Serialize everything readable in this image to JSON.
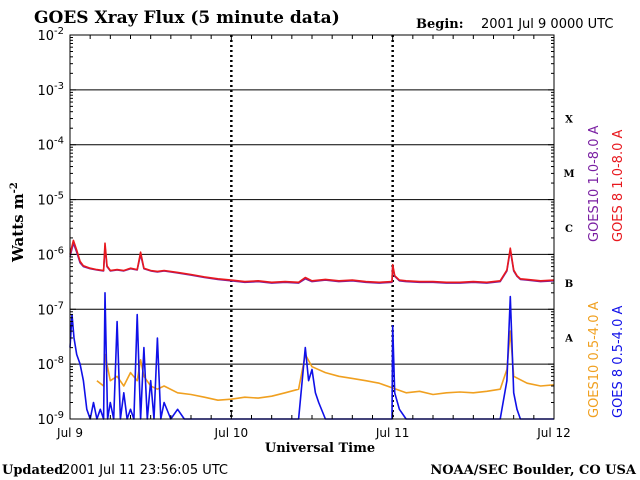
{
  "chart_data": {
    "type": "line",
    "title": "GOES Xray Flux (5 minute data)",
    "begin_label": "Begin:",
    "begin_value": "2001 Jul 9 0000 UTC",
    "xlabel": "Universal Time",
    "ylabel_main": "Watts m",
    "ylabel_sup": "-2",
    "y_scale": "log",
    "ylim": [
      1e-09,
      0.01
    ],
    "y_tick_labels": [
      {
        "base": "10",
        "exp": "-2",
        "value": 0.01
      },
      {
        "base": "10",
        "exp": "-3",
        "value": 0.001
      },
      {
        "base": "10",
        "exp": "-4",
        "value": 0.0001
      },
      {
        "base": "10",
        "exp": "-5",
        "value": 1e-05
      },
      {
        "base": "10",
        "exp": "-6",
        "value": 1e-06
      },
      {
        "base": "10",
        "exp": "-7",
        "value": 1e-07
      },
      {
        "base": "10",
        "exp": "-8",
        "value": 1e-08
      },
      {
        "base": "10",
        "exp": "-9",
        "value": 1e-09
      }
    ],
    "xlim": [
      0,
      72
    ],
    "x_tick_labels": [
      {
        "label": "Jul 9",
        "hour": 0
      },
      {
        "label": "Jul 10",
        "hour": 24
      },
      {
        "label": "Jul 11",
        "hour": 48
      },
      {
        "label": "Jul 12",
        "hour": 72
      }
    ],
    "flare_classes": [
      {
        "label": "X",
        "min": 0.0001,
        "max": 0.001
      },
      {
        "label": "M",
        "min": 1e-05,
        "max": 0.0001
      },
      {
        "label": "C",
        "min": 1e-06,
        "max": 1e-05
      },
      {
        "label": "B",
        "min": 1e-07,
        "max": 1e-06
      },
      {
        "label": "A",
        "min": 1e-08,
        "max": 1e-07
      }
    ],
    "grid": "horizontal lines at each decade, dotted vertical lines at day boundaries",
    "legend_placement": "right side, vertical",
    "series": [
      {
        "name": "GOES10 1.0-8.0 A",
        "color": "#7a1fa2",
        "x": [
          0,
          0.5,
          1,
          1.5,
          2,
          3,
          4,
          5,
          5.2,
          5.5,
          6,
          7,
          8,
          9,
          10,
          10.5,
          11,
          12,
          13,
          14,
          16,
          18,
          20,
          22,
          24,
          26,
          28,
          30,
          32,
          34,
          35,
          36,
          38,
          40,
          42,
          44,
          46,
          47.9,
          48,
          48.3,
          49,
          50,
          52,
          54,
          56,
          58,
          60,
          62,
          64,
          65,
          65.5,
          66,
          66.5,
          67,
          68,
          70,
          72
        ],
        "y": [
          9e-07,
          1.6e-06,
          1.1e-06,
          7e-07,
          6e-07,
          5.5e-07,
          5.2e-07,
          5e-07,
          1.4e-06,
          6e-07,
          5e-07,
          5.2e-07,
          5e-07,
          5.5e-07,
          5.2e-07,
          1e-06,
          5.5e-07,
          5e-07,
          4.8e-07,
          5e-07,
          4.6e-07,
          4.2e-07,
          3.8e-07,
          3.5e-07,
          3.3e-07,
          3.1e-07,
          3.2e-07,
          3e-07,
          3.1e-07,
          3e-07,
          3.6e-07,
          3.2e-07,
          3.4e-07,
          3.2e-07,
          3.3e-07,
          3.1e-07,
          3e-07,
          3.1e-07,
          6e-07,
          4e-07,
          3.3e-07,
          3.2e-07,
          3.1e-07,
          3.1e-07,
          3e-07,
          3e-07,
          3.1e-07,
          3e-07,
          3.2e-07,
          5e-07,
          1.2e-06,
          5e-07,
          4e-07,
          3.5e-07,
          3.4e-07,
          3.2e-07,
          3.3e-07
        ]
      },
      {
        "name": "GOES 8 1.0-8.0 A",
        "color": "#e8181e",
        "x": [
          0,
          0.5,
          1,
          1.5,
          2,
          3,
          4,
          5,
          5.2,
          5.5,
          6,
          7,
          8,
          9,
          10,
          10.5,
          11,
          12,
          13,
          14,
          16,
          18,
          20,
          22,
          24,
          26,
          28,
          30,
          32,
          34,
          35,
          36,
          38,
          40,
          42,
          44,
          46,
          47.9,
          48,
          48.3,
          49,
          50,
          52,
          54,
          56,
          58,
          60,
          62,
          64,
          65,
          65.5,
          66,
          66.5,
          67,
          68,
          70,
          72
        ],
        "y": [
          1e-06,
          1.8e-06,
          1.2e-06,
          7.5e-07,
          6.2e-07,
          5.6e-07,
          5.3e-07,
          5.1e-07,
          1.6e-06,
          6.2e-07,
          5.1e-07,
          5.3e-07,
          5.1e-07,
          5.6e-07,
          5.3e-07,
          1.1e-06,
          5.6e-07,
          5.1e-07,
          4.9e-07,
          5.1e-07,
          4.7e-07,
          4.3e-07,
          3.9e-07,
          3.6e-07,
          3.4e-07,
          3.2e-07,
          3.3e-07,
          3.1e-07,
          3.2e-07,
          3.1e-07,
          3.8e-07,
          3.3e-07,
          3.5e-07,
          3.3e-07,
          3.4e-07,
          3.2e-07,
          3.1e-07,
          3.2e-07,
          6.5e-07,
          4.1e-07,
          3.4e-07,
          3.3e-07,
          3.2e-07,
          3.2e-07,
          3.1e-07,
          3.1e-07,
          3.2e-07,
          3.1e-07,
          3.3e-07,
          5.2e-07,
          1.3e-06,
          5.2e-07,
          4.1e-07,
          3.6e-07,
          3.5e-07,
          3.3e-07,
          3.4e-07
        ]
      },
      {
        "name": "GOES10 0.5-4.0 A",
        "color": "#f0a020",
        "x": [
          4,
          5,
          5.2,
          6,
          7,
          8,
          9,
          10,
          10.5,
          11,
          12,
          13,
          14,
          16,
          18,
          20,
          22,
          24,
          26,
          28,
          30,
          32,
          34,
          35,
          36,
          38,
          40,
          42,
          44,
          46,
          50,
          52,
          54,
          56,
          58,
          60,
          62,
          64,
          65,
          65.5,
          66,
          68,
          70,
          72
        ],
        "y": [
          5e-09,
          4e-09,
          1.5e-08,
          5e-09,
          6e-09,
          4e-09,
          7e-09,
          5e-09,
          1.2e-08,
          6e-09,
          4e-09,
          3.5e-09,
          4e-09,
          3e-09,
          2.8e-09,
          2.5e-09,
          2.2e-09,
          2.3e-09,
          2.5e-09,
          2.4e-09,
          2.6e-09,
          3e-09,
          3.5e-09,
          1.5e-08,
          9e-09,
          7e-09,
          6e-09,
          5.5e-09,
          5e-09,
          4.5e-09,
          3e-09,
          3.2e-09,
          2.8e-09,
          3e-09,
          3.1e-09,
          3e-09,
          3.2e-09,
          3.5e-09,
          8e-09,
          4e-08,
          6e-09,
          4.5e-09,
          4e-09,
          4.2e-09
        ]
      },
      {
        "name": "GOES 8 0.5-4.0 A",
        "color": "#1010e8",
        "x": [
          0,
          0.3,
          0.6,
          1,
          1.5,
          2,
          2.5,
          3,
          3.5,
          4,
          4.5,
          5,
          5.2,
          5.6,
          6,
          6.5,
          7,
          7.5,
          8,
          8.5,
          9,
          9.5,
          10,
          10.5,
          11,
          11.5,
          12,
          12.5,
          13,
          13.5,
          14,
          15,
          16,
          17,
          18,
          19,
          20,
          21,
          22,
          23,
          24,
          25,
          26,
          28,
          30,
          32,
          34,
          35,
          35.5,
          36,
          36.5,
          37,
          38,
          40,
          42,
          44,
          46,
          47.9,
          48,
          48.3,
          49,
          50,
          51,
          52,
          54,
          56,
          58,
          60,
          62,
          63,
          64,
          65,
          65.5,
          66,
          66.5,
          67,
          68,
          70,
          72
        ],
        "y": [
          2e-08,
          8e-08,
          3e-08,
          1.5e-08,
          1e-08,
          5e-09,
          1.5e-09,
          1e-09,
          2e-09,
          1e-09,
          1.5e-09,
          1e-09,
          2e-07,
          1e-09,
          2e-09,
          1e-09,
          6e-08,
          1e-09,
          3e-09,
          1e-09,
          1.5e-09,
          1e-09,
          8e-08,
          1e-09,
          2e-08,
          1e-09,
          5e-09,
          1e-09,
          3e-08,
          1e-09,
          2e-09,
          1e-09,
          1.5e-09,
          1e-09,
          1e-09,
          1e-09,
          1e-09,
          1e-09,
          1e-09,
          1e-09,
          1e-09,
          1e-09,
          1e-09,
          1e-09,
          1e-09,
          1e-09,
          1e-09,
          2e-08,
          5e-09,
          8e-09,
          3e-09,
          2e-09,
          1e-09,
          1e-09,
          1e-09,
          1e-09,
          1e-09,
          1e-09,
          5e-08,
          3e-09,
          1.5e-09,
          1e-09,
          1e-09,
          1e-09,
          1e-09,
          1e-09,
          1e-09,
          1e-09,
          1e-09,
          1e-09,
          1e-09,
          5e-09,
          1.7e-07,
          3e-09,
          1.5e-09,
          1e-09,
          1e-09,
          1e-09,
          1e-09
        ]
      }
    ]
  },
  "footer": {
    "updated_label": "Updated",
    "updated_value": "2001 Jul 11 23:56:05 UTC",
    "source": "NOAA/SEC Boulder, CO USA"
  }
}
